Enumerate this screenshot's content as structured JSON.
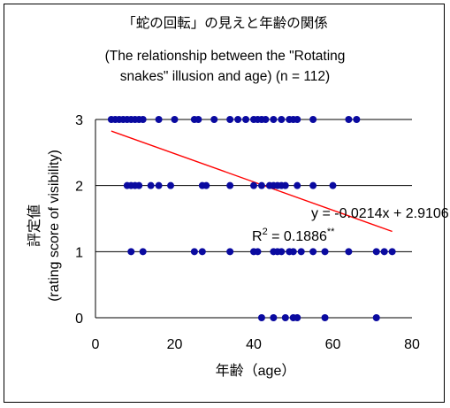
{
  "chart_data": {
    "type": "scatter",
    "title": "「蛇の回転」の見えと年齢の関係",
    "subtitle_line1": "(The relationship between the \"Rotating",
    "subtitle_line2": "snakes\" illusion and age) (n = 112)",
    "xlabel": "年齢（age）",
    "ylabel_line1": "評定値",
    "ylabel_line2": "(rating score of visibility)",
    "xlim": [
      0,
      80
    ],
    "ylim": [
      0,
      3
    ],
    "x_ticks": [
      "0",
      "20",
      "40",
      "60",
      "80"
    ],
    "y_ticks": [
      "0",
      "1",
      "2",
      "3"
    ],
    "grid": "horizontal",
    "colors": {
      "points": "#0a0aa0",
      "trendline": "#ff0000",
      "gridline": "#000000"
    },
    "points": [
      {
        "x": 4,
        "y": 3
      },
      {
        "x": 5,
        "y": 3
      },
      {
        "x": 6,
        "y": 3
      },
      {
        "x": 7,
        "y": 3
      },
      {
        "x": 8,
        "y": 3
      },
      {
        "x": 9,
        "y": 3
      },
      {
        "x": 10,
        "y": 3
      },
      {
        "x": 11,
        "y": 3
      },
      {
        "x": 12,
        "y": 3
      },
      {
        "x": 16,
        "y": 3
      },
      {
        "x": 20,
        "y": 3
      },
      {
        "x": 25,
        "y": 3
      },
      {
        "x": 26,
        "y": 3
      },
      {
        "x": 30,
        "y": 3
      },
      {
        "x": 34,
        "y": 3
      },
      {
        "x": 36,
        "y": 3
      },
      {
        "x": 38,
        "y": 3
      },
      {
        "x": 40,
        "y": 3
      },
      {
        "x": 41,
        "y": 3
      },
      {
        "x": 42,
        "y": 3
      },
      {
        "x": 43,
        "y": 3
      },
      {
        "x": 45,
        "y": 3
      },
      {
        "x": 47,
        "y": 3
      },
      {
        "x": 49,
        "y": 3
      },
      {
        "x": 50,
        "y": 3
      },
      {
        "x": 51,
        "y": 3
      },
      {
        "x": 55,
        "y": 3
      },
      {
        "x": 64,
        "y": 3
      },
      {
        "x": 66,
        "y": 3
      },
      {
        "x": 8,
        "y": 2
      },
      {
        "x": 9,
        "y": 2
      },
      {
        "x": 10,
        "y": 2
      },
      {
        "x": 11,
        "y": 2
      },
      {
        "x": 14,
        "y": 2
      },
      {
        "x": 16,
        "y": 2
      },
      {
        "x": 19,
        "y": 2
      },
      {
        "x": 27,
        "y": 2
      },
      {
        "x": 28,
        "y": 2
      },
      {
        "x": 34,
        "y": 2
      },
      {
        "x": 40,
        "y": 2
      },
      {
        "x": 42,
        "y": 2
      },
      {
        "x": 44,
        "y": 2
      },
      {
        "x": 45,
        "y": 2
      },
      {
        "x": 46,
        "y": 2
      },
      {
        "x": 47,
        "y": 2
      },
      {
        "x": 48,
        "y": 2
      },
      {
        "x": 51,
        "y": 2
      },
      {
        "x": 55,
        "y": 2
      },
      {
        "x": 60,
        "y": 2
      },
      {
        "x": 9,
        "y": 1
      },
      {
        "x": 12,
        "y": 1
      },
      {
        "x": 25,
        "y": 1
      },
      {
        "x": 27,
        "y": 1
      },
      {
        "x": 34,
        "y": 1
      },
      {
        "x": 40,
        "y": 1
      },
      {
        "x": 41,
        "y": 1
      },
      {
        "x": 45,
        "y": 1
      },
      {
        "x": 46,
        "y": 1
      },
      {
        "x": 47,
        "y": 1
      },
      {
        "x": 49,
        "y": 1
      },
      {
        "x": 50,
        "y": 1
      },
      {
        "x": 52,
        "y": 1
      },
      {
        "x": 55,
        "y": 1
      },
      {
        "x": 58,
        "y": 1
      },
      {
        "x": 64,
        "y": 1
      },
      {
        "x": 71,
        "y": 1
      },
      {
        "x": 73,
        "y": 1
      },
      {
        "x": 75,
        "y": 1
      },
      {
        "x": 42,
        "y": 0
      },
      {
        "x": 45,
        "y": 0
      },
      {
        "x": 48,
        "y": 0
      },
      {
        "x": 50,
        "y": 0
      },
      {
        "x": 51,
        "y": 0
      },
      {
        "x": 58,
        "y": 0
      },
      {
        "x": 71,
        "y": 0
      }
    ],
    "trendline": {
      "slope": -0.0214,
      "intercept": 2.9106,
      "x_range": [
        4,
        75
      ]
    },
    "equation": "y = -0.0214x + 2.9106",
    "r2_prefix": "R",
    "r2_sup": "2",
    "r2_value": " = 0.1886",
    "significance": "**"
  }
}
